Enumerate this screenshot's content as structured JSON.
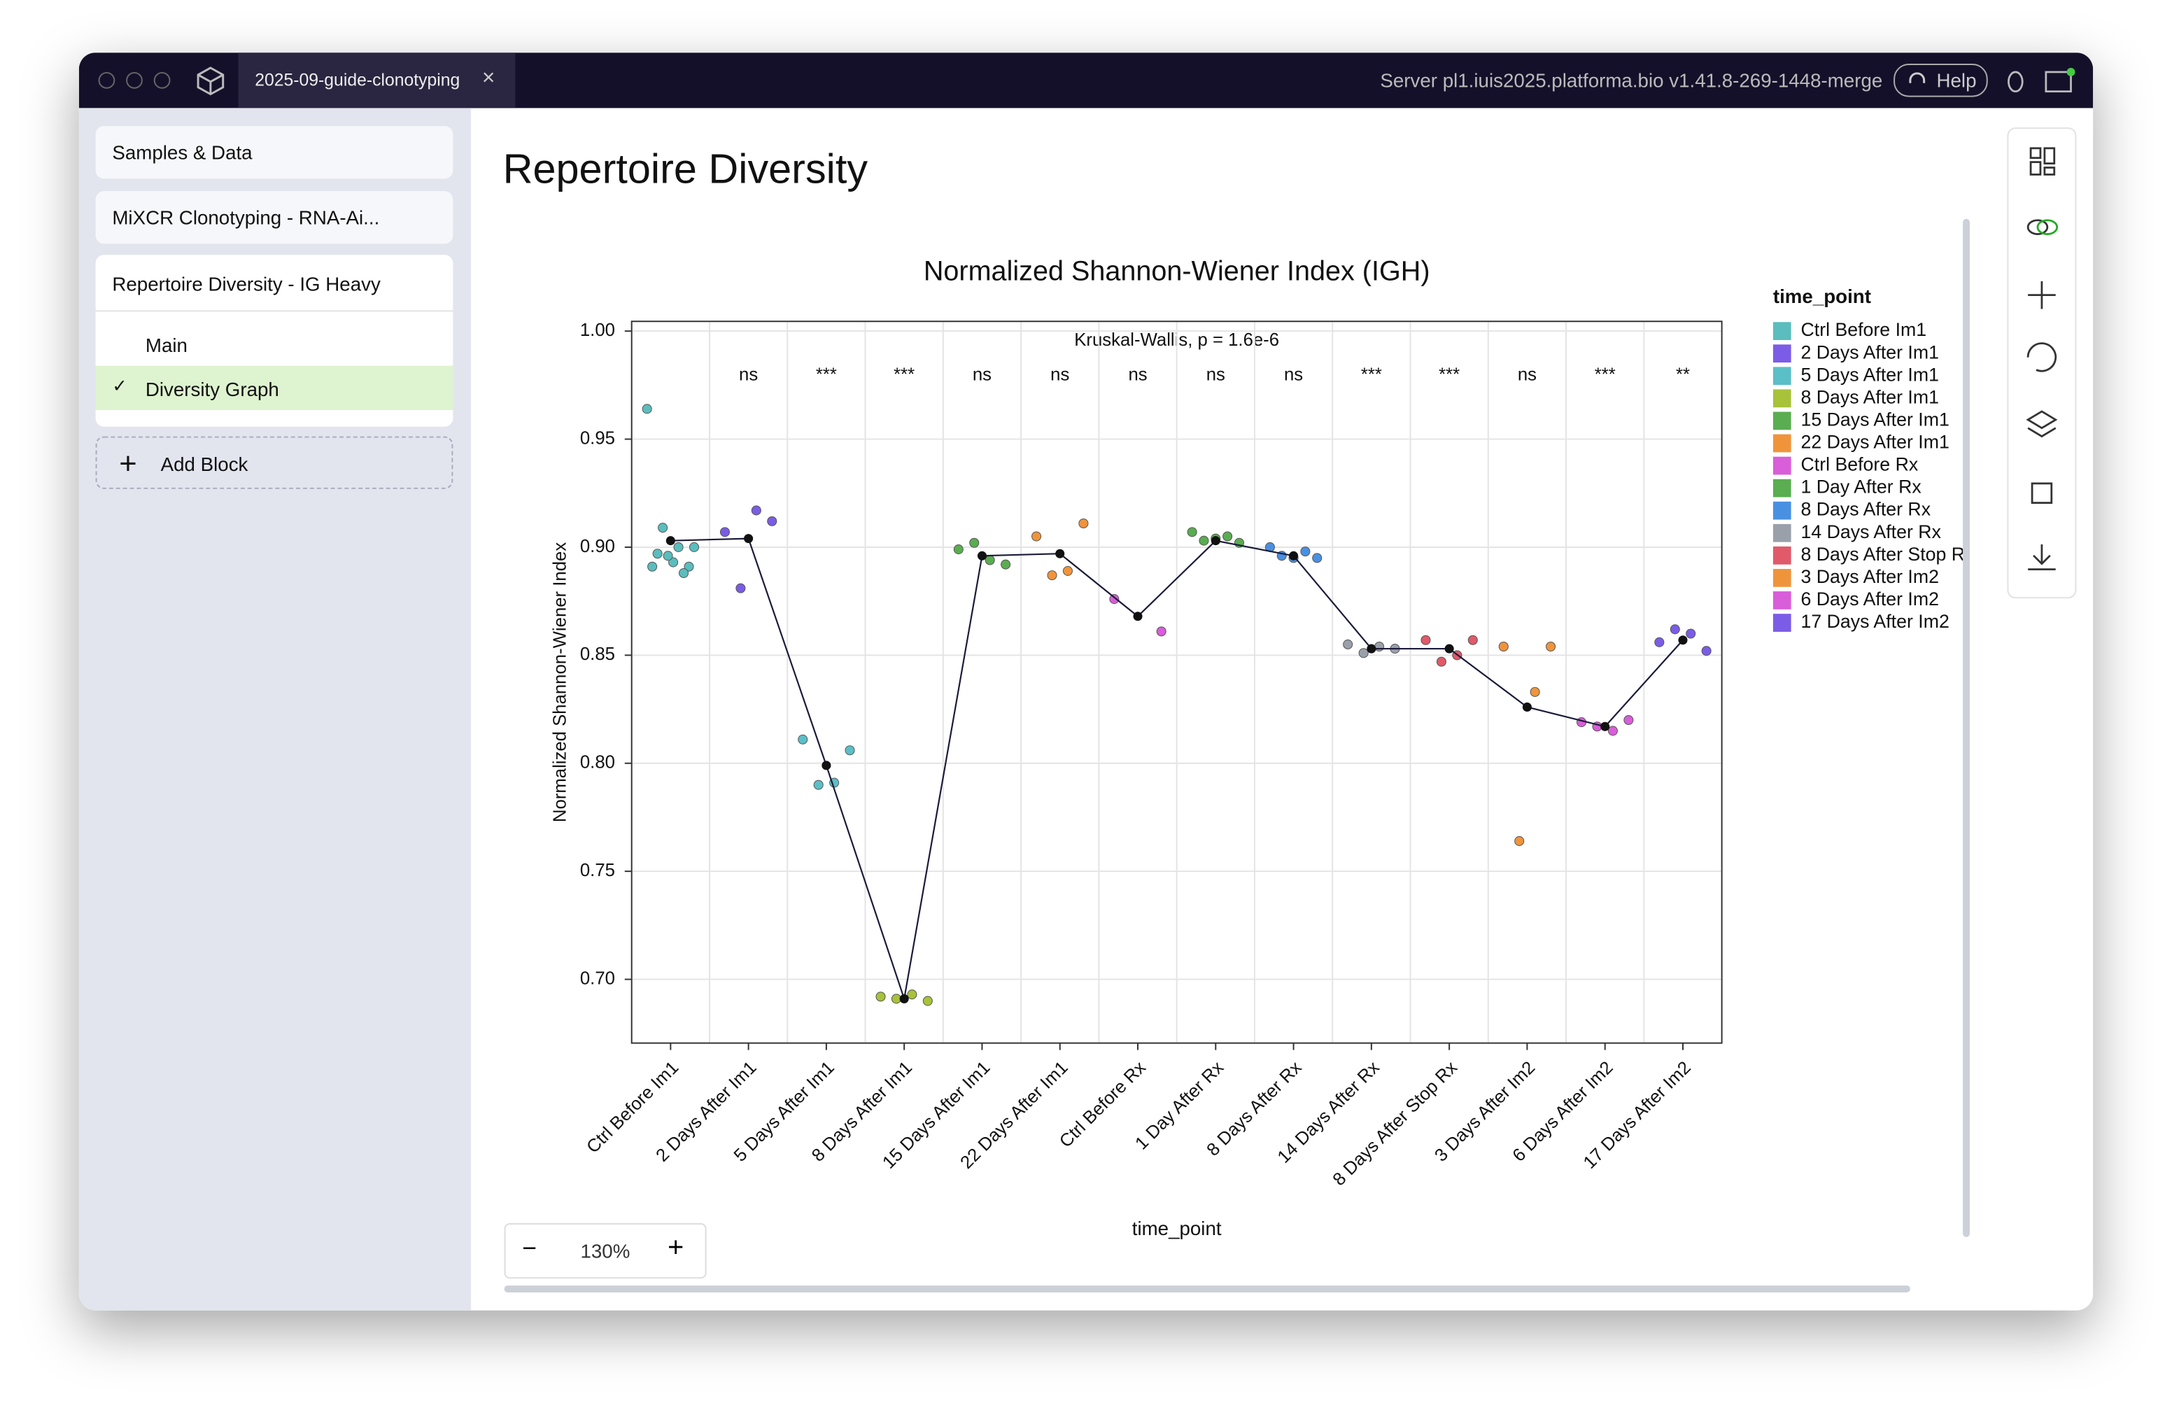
{
  "window": {
    "tab": "2025-09-guide-clonotyping",
    "server": "Server pl1.iuis2025.platforma.bio v1.41.8-269-1448-merge",
    "help": "Help"
  },
  "sidebar": {
    "items": [
      "Samples & Data",
      "MiXCR Clonotyping - RNA-Ai...",
      "Repertoire Diversity - IG Heavy"
    ],
    "subitems": [
      "Main",
      "Diversity Graph"
    ],
    "add": "Add Block"
  },
  "page": {
    "title": "Repertoire Diversity",
    "zoom": "130%"
  },
  "chart_data": {
    "type": "strip",
    "title": "Normalized Shannon-Wiener Index (IGH)",
    "subtitle": "Kruskal-Wallis, p = 1.6e-6",
    "x_label": "time_point",
    "y_label": "Normalized Shannon-Wiener Index",
    "legend_title": "time_point",
    "categories": [
      "Ctrl Before Im1",
      "2 Days After Im1",
      "5 Days After Im1",
      "8 Days After Im1",
      "15 Days After Im1",
      "22 Days After Im1",
      "Ctrl Before Rx",
      "1 Day After Rx",
      "8 Days After Rx",
      "14 Days After Rx",
      "8 Days After Stop Rx",
      "3 Days After Im2",
      "6 Days After Im2",
      "17 Days After Im2"
    ],
    "series": [
      {
        "name": "Ctrl Before Im1",
        "color": "#5bbdbd",
        "values": [
          0.964,
          0.909,
          0.9,
          0.9,
          0.897,
          0.893,
          0.891,
          0.891,
          0.896,
          0.888
        ]
      },
      {
        "name": "2 Days After Im1",
        "color": "#7b5ce6",
        "values": [
          0.907,
          0.912,
          0.917,
          0.881
        ]
      },
      {
        "name": "5 Days After Im1",
        "color": "#5bbfc8",
        "values": [
          0.811,
          0.806,
          0.791,
          0.79
        ]
      },
      {
        "name": "8 Days After Im1",
        "color": "#a8c23a",
        "values": [
          0.692,
          0.69,
          0.693,
          0.691
        ]
      },
      {
        "name": "15 Days After Im1",
        "color": "#5aad50",
        "values": [
          0.899,
          0.892,
          0.894,
          0.902
        ]
      },
      {
        "name": "22 Days After Im1",
        "color": "#f0943c",
        "values": [
          0.905,
          0.911,
          0.889,
          0.887
        ]
      },
      {
        "name": "Ctrl Before Rx",
        "color": "#d95ed9",
        "values": [
          0.876,
          0.861
        ]
      },
      {
        "name": "1 Day After Rx",
        "color": "#5aad50",
        "values": [
          0.907,
          0.905,
          0.903,
          0.902,
          0.904
        ]
      },
      {
        "name": "8 Days After Rx",
        "color": "#4a90e2",
        "values": [
          0.9,
          0.898,
          0.896,
          0.895,
          0.895
        ]
      },
      {
        "name": "14 Days After Rx",
        "color": "#9aa0aa",
        "values": [
          0.855,
          0.853,
          0.854,
          0.851
        ]
      },
      {
        "name": "8 Days After Stop Rx",
        "color": "#e05a6a",
        "values": [
          0.857,
          0.857,
          0.85,
          0.847
        ]
      },
      {
        "name": "3 Days After Im2",
        "color": "#f0943c",
        "values": [
          0.854,
          0.854,
          0.833,
          0.764
        ]
      },
      {
        "name": "6 Days After Im2",
        "color": "#d95ed9",
        "values": [
          0.819,
          0.82,
          0.815,
          0.817
        ]
      },
      {
        "name": "17 Days After Im2",
        "color": "#7b5ce6",
        "values": [
          0.856,
          0.852,
          0.86,
          0.862
        ]
      }
    ],
    "means": [
      0.903,
      0.904,
      0.799,
      0.691,
      0.896,
      0.897,
      0.868,
      0.903,
      0.896,
      0.853,
      0.853,
      0.826,
      0.817,
      0.857
    ],
    "mean_color": "#111111",
    "annotations": [
      null,
      "ns",
      "***",
      "***",
      "ns",
      "ns",
      "ns",
      "ns",
      "ns",
      "***",
      "***",
      "ns",
      "***",
      "**"
    ],
    "ylim": [
      0.6705,
      1.0045
    ],
    "yticks": [
      {
        "value": 0.7,
        "label": "0.70"
      },
      0.75,
      {
        "value": 0.8,
        "label": "0.80"
      },
      0.85,
      {
        "value": 0.9,
        "label": "0.90"
      },
      0.95,
      {
        "value": 1.0,
        "label": "1.00"
      }
    ],
    "grid": true
  }
}
